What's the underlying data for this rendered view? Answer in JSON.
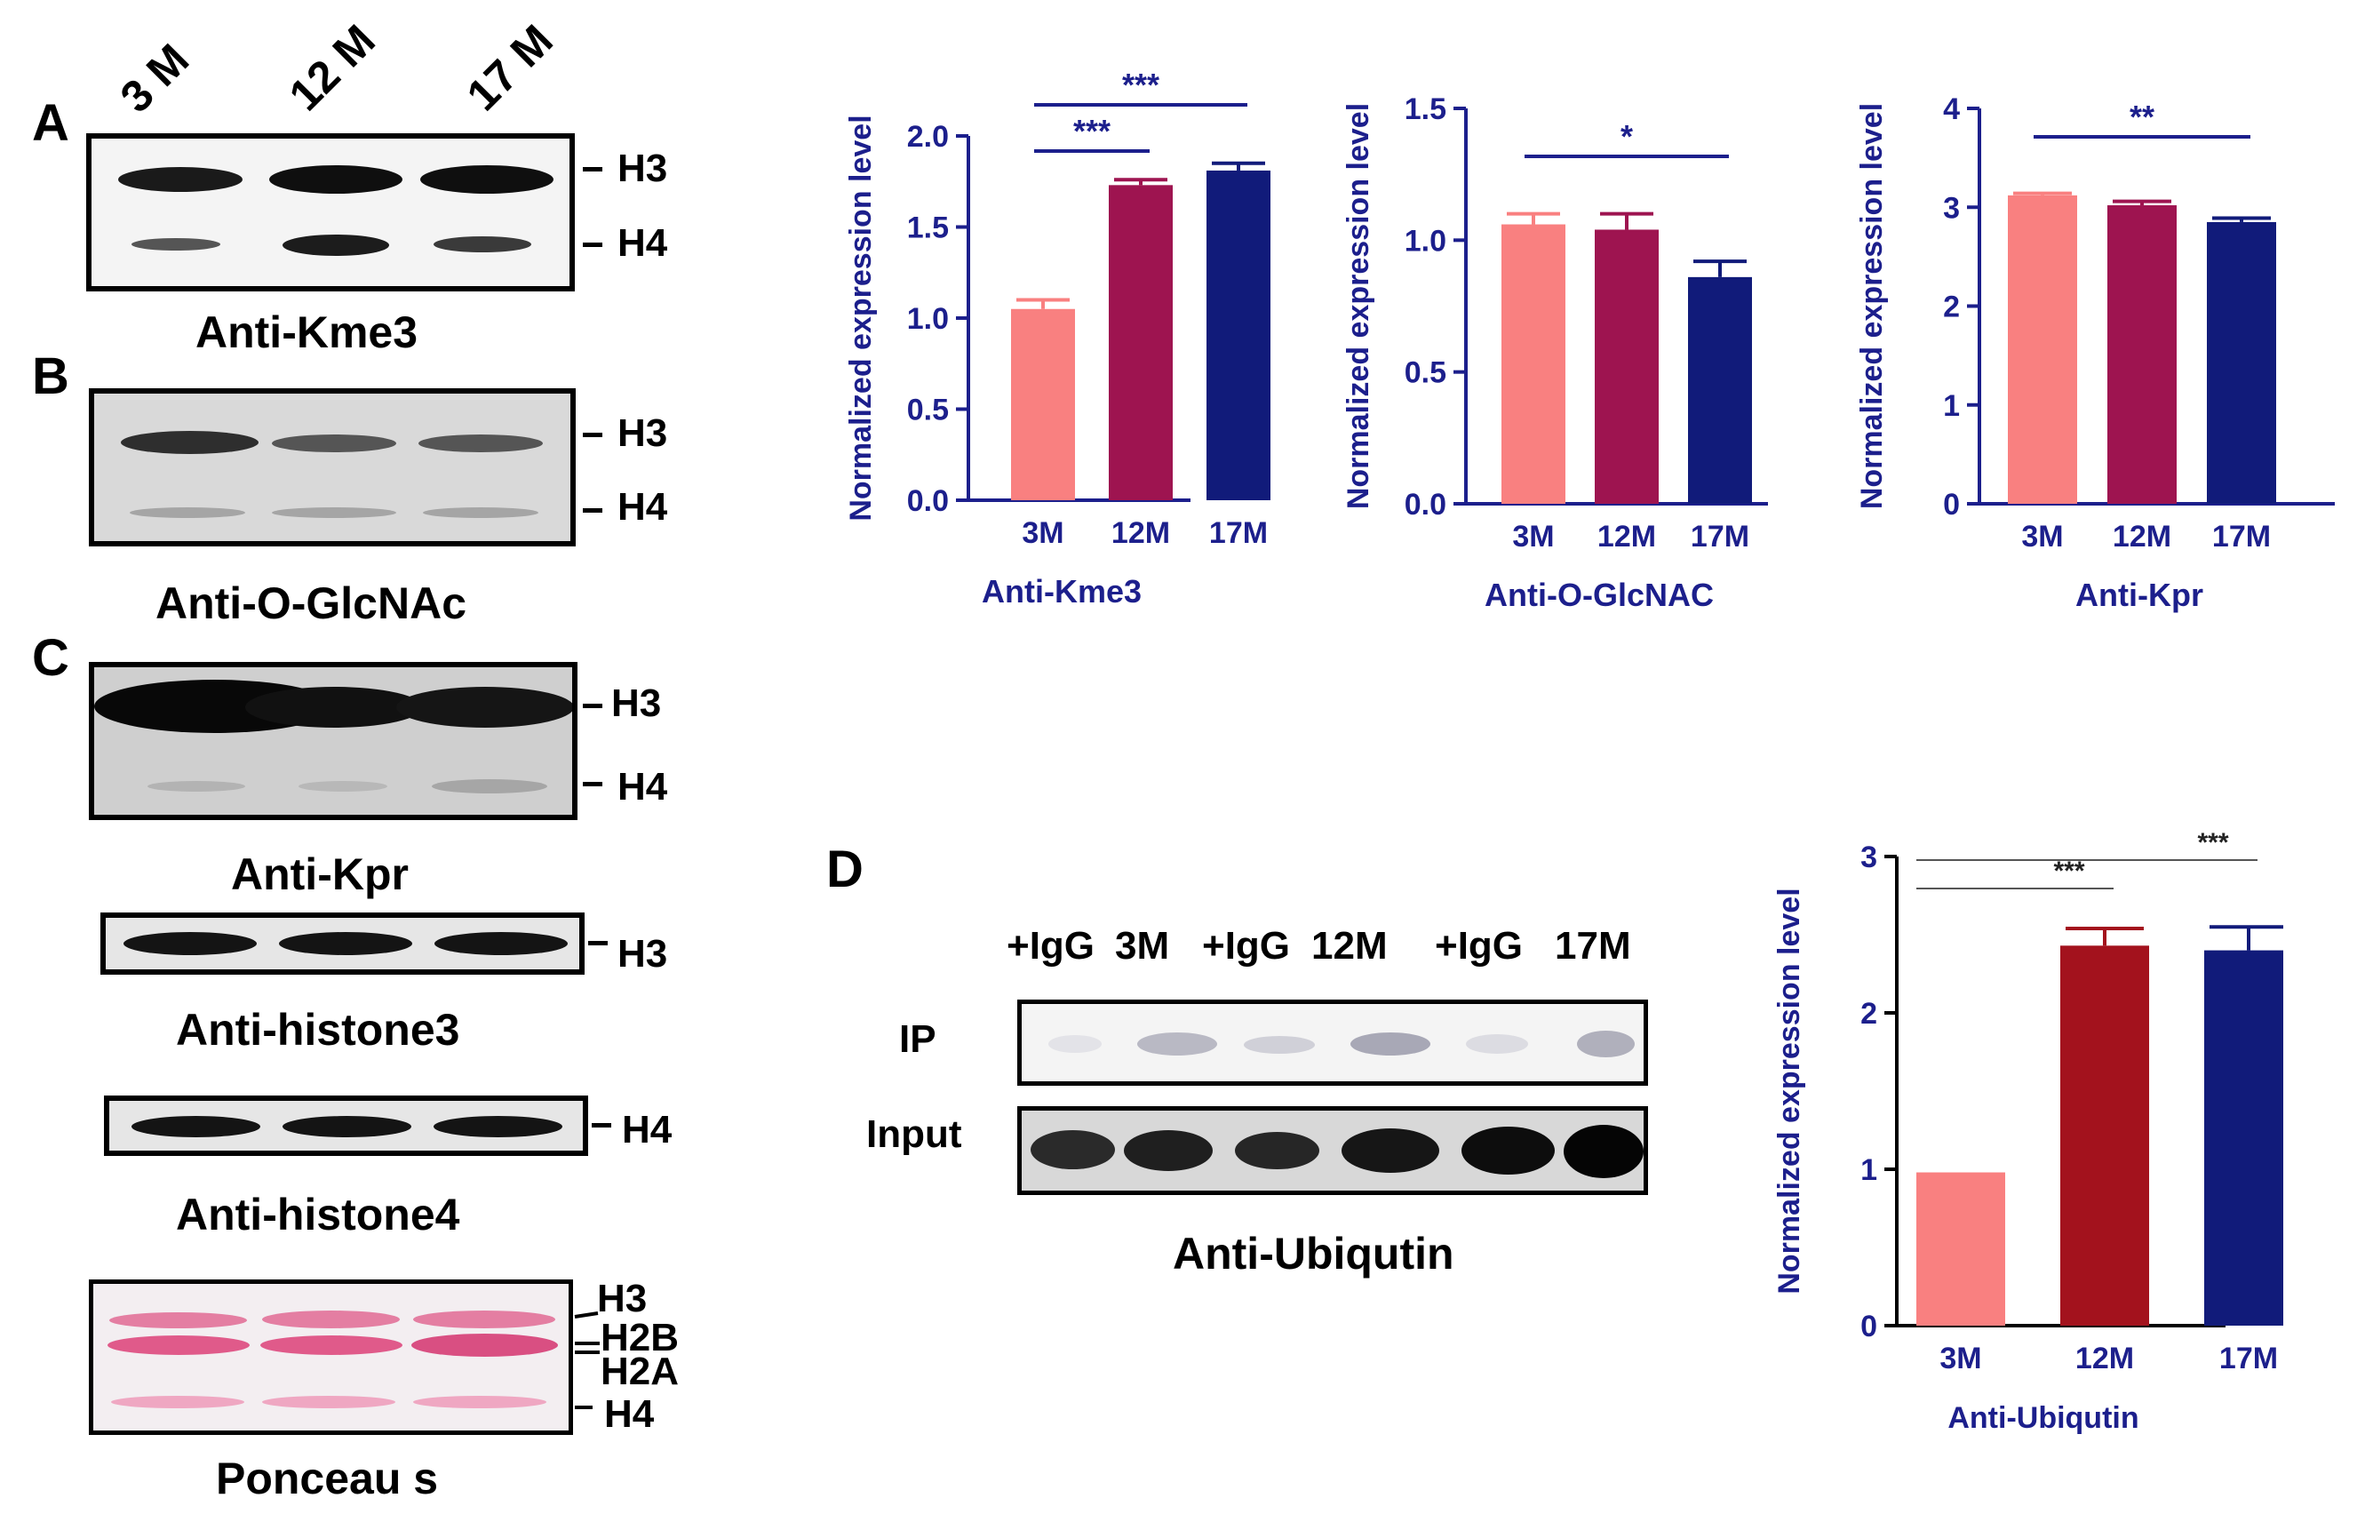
{
  "panels": {
    "A": "A",
    "B": "B",
    "C": "C",
    "D": "D"
  },
  "lanes": [
    "3 M",
    "12 M",
    "17 M"
  ],
  "markers": {
    "h3": "H3",
    "h4": "H4",
    "h2b": "H2B",
    "h2a": "H2A"
  },
  "captions": {
    "kme3": "Anti-Kme3",
    "oglcnac": "Anti-O-GlcNAc",
    "kpr": "Anti-Kpr",
    "histone3": "Anti-histone3",
    "histone4": "Anti-histone4",
    "ponceau": "Ponceau s",
    "ubiquitin": "Anti-Ubiqutin"
  },
  "ip_blot": {
    "lanes": [
      "+IgG",
      "3M",
      "+IgG",
      "12M",
      "+IgG",
      "17M"
    ],
    "row_ip": "IP",
    "row_input": "Input"
  },
  "colors": {
    "salmon": "#f98080",
    "maroon": "#9e1450",
    "navy": "#111b7a",
    "darkred": "#a3121d",
    "axis_blue": "#1c1f8c"
  },
  "chart_data": [
    {
      "type": "bar",
      "categories": [
        "3M",
        "12M",
        "17M"
      ],
      "values": [
        1.05,
        1.73,
        1.81
      ],
      "errors": [
        0.05,
        0.03,
        0.04
      ],
      "colors": [
        "#f98080",
        "#9e1450",
        "#111b7a"
      ],
      "ylabel": "Normalized expression level",
      "xlabel": "Anti-Kme3",
      "ylim": [
        0,
        2.0
      ],
      "yticks": [
        "0.0",
        "0.5",
        "1.0",
        "1.5",
        "2.0"
      ],
      "tickvals": [
        0,
        0.5,
        1.0,
        1.5,
        2.0
      ],
      "significance": [
        {
          "from": 0,
          "to": 1,
          "label": "***"
        },
        {
          "from": 0,
          "to": 2,
          "label": "***"
        }
      ]
    },
    {
      "type": "bar",
      "categories": [
        "3M",
        "12M",
        "17M"
      ],
      "values": [
        1.06,
        1.04,
        0.86
      ],
      "errors": [
        0.04,
        0.06,
        0.06
      ],
      "colors": [
        "#f98080",
        "#9e1450",
        "#111b7a"
      ],
      "ylabel": "Normalized expression level",
      "xlabel": "Anti-O-GlcNAC",
      "ylim": [
        0,
        1.5
      ],
      "yticks": [
        "0.0",
        "0.5",
        "1.0",
        "1.5"
      ],
      "tickvals": [
        0,
        0.5,
        1.0,
        1.5
      ],
      "significance": [
        {
          "from": 0,
          "to": 2,
          "label": "*"
        }
      ]
    },
    {
      "type": "bar",
      "categories": [
        "3M",
        "12M",
        "17M"
      ],
      "values": [
        3.12,
        3.02,
        2.85
      ],
      "errors": [
        0.02,
        0.04,
        0.04
      ],
      "colors": [
        "#f98080",
        "#9e1450",
        "#111b7a"
      ],
      "ylabel": "Normalized expression level",
      "xlabel": "Anti-Kpr",
      "ylim": [
        0,
        4
      ],
      "yticks": [
        "0",
        "1",
        "2",
        "3",
        "4"
      ],
      "tickvals": [
        0,
        1,
        2,
        3,
        4
      ],
      "significance": [
        {
          "from": 0,
          "to": 2,
          "label": "**"
        }
      ]
    },
    {
      "type": "bar",
      "categories": [
        "3M",
        "12M",
        "17M"
      ],
      "values": [
        0.98,
        2.43,
        2.4
      ],
      "errors": [
        0,
        0.11,
        0.15
      ],
      "colors": [
        "#f98080",
        "#a3121d",
        "#111b7a"
      ],
      "ylabel": "Normalized expression level",
      "xlabel": "Anti-Ubiqutin",
      "ylim": [
        0,
        3
      ],
      "yticks": [
        "0",
        "1",
        "2",
        "3"
      ],
      "tickvals": [
        0,
        1,
        2,
        3
      ],
      "significance": [
        {
          "from": 0,
          "to": 1,
          "label": "***"
        },
        {
          "from": 0,
          "to": 2,
          "label": "***"
        }
      ]
    }
  ]
}
